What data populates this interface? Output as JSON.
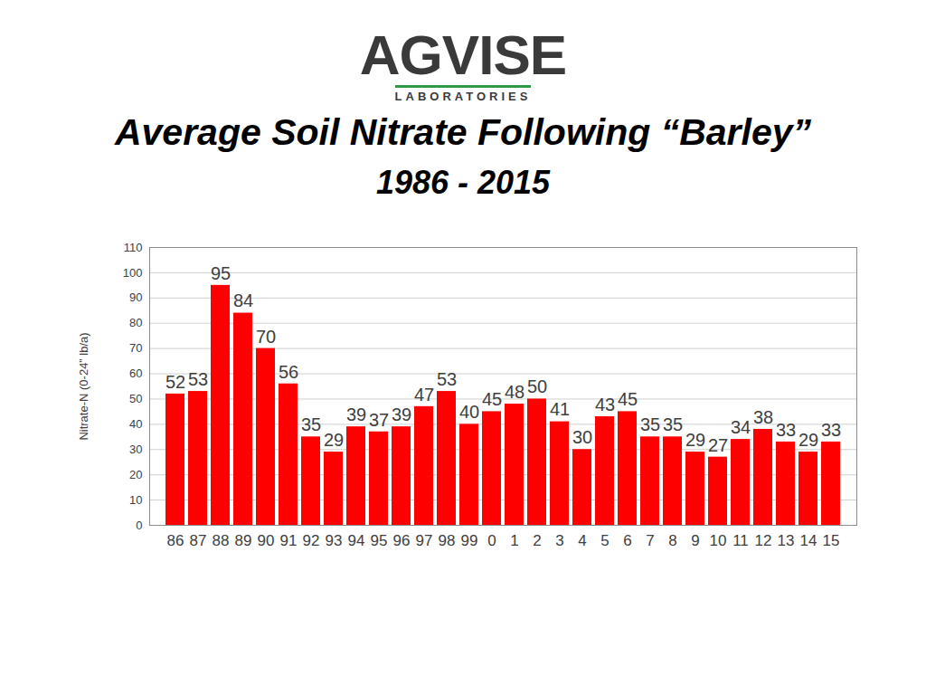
{
  "header": {
    "logo": "AGVISE",
    "logo_subtitle": "LABORATORIES"
  },
  "chart_data": {
    "type": "bar",
    "title": "Average Soil Nitrate Following “Barley”",
    "subtitle": "1986 - 2015",
    "y_label": "Nitrate-N (0-24” lb/a)",
    "categories": [
      "86",
      "87",
      "88",
      "89",
      "90",
      "91",
      "92",
      "93",
      "94",
      "95",
      "96",
      "97",
      "98",
      "99",
      "0",
      "1",
      "2",
      "3",
      "4",
      "5",
      "6",
      "7",
      "8",
      "9",
      "10",
      "11",
      "12",
      "13",
      "14",
      "15"
    ],
    "values": [
      52,
      53,
      95,
      84,
      70,
      56,
      35,
      29,
      39,
      37,
      39,
      47,
      53,
      40,
      45,
      48,
      50,
      41,
      30,
      43,
      45,
      35,
      35,
      29,
      27,
      34,
      38,
      33,
      29,
      33
    ],
    "color": "#ff0000",
    "ylim": [
      0,
      110
    ],
    "yticks": [
      0,
      10,
      20,
      30,
      40,
      50,
      60,
      70,
      80,
      90,
      100,
      110
    ],
    "grid": true,
    "data_labels": true
  }
}
